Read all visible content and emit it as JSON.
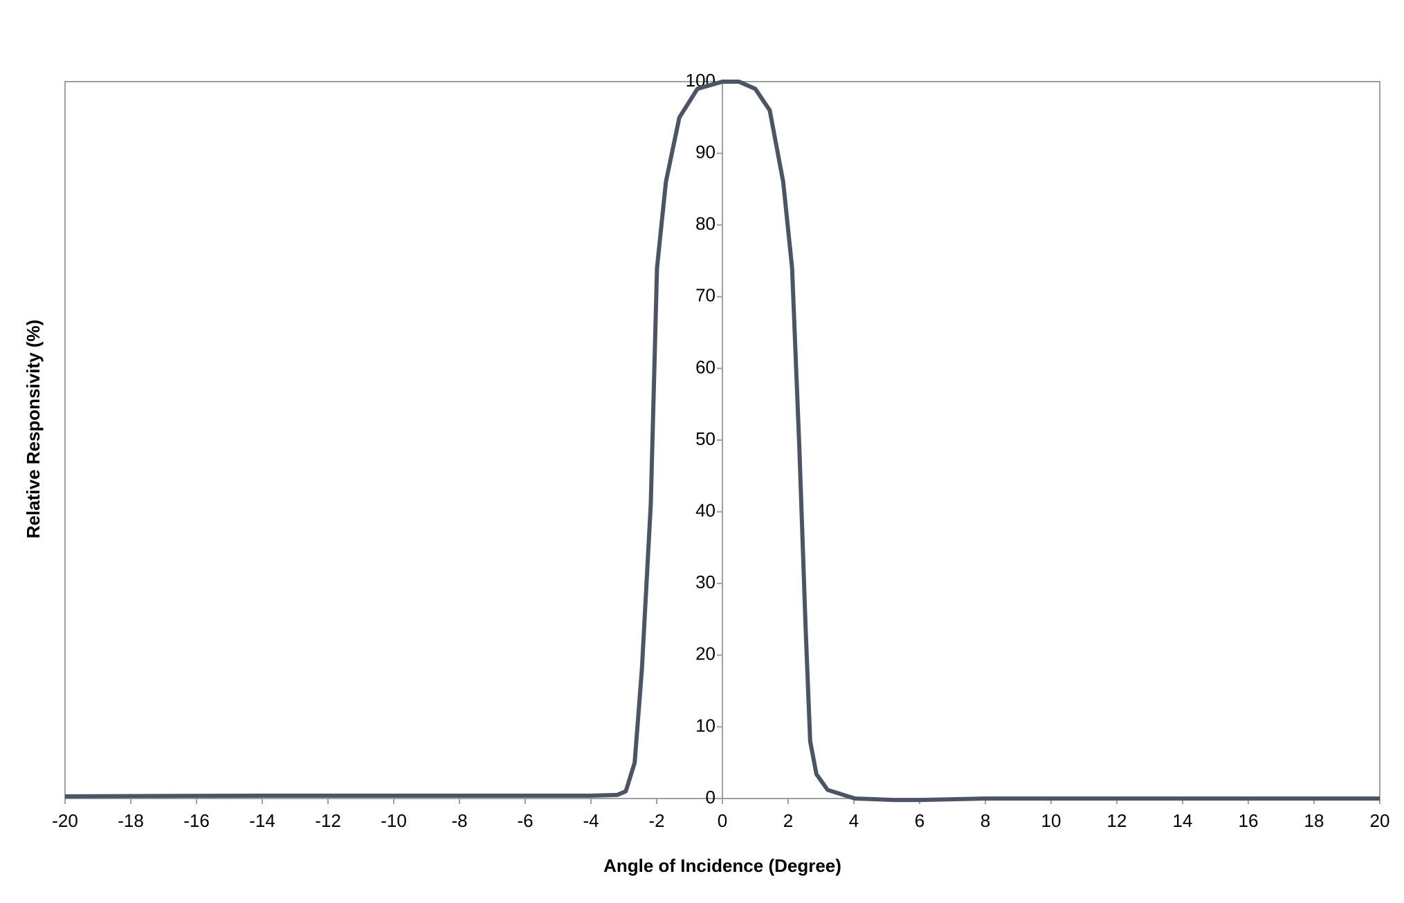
{
  "chart_data": {
    "type": "line",
    "xlabel": "Angle of Incidence (Degree)",
    "ylabel": "Relative Responsivity (%)",
    "x": [
      -20,
      -14,
      -4,
      -3.2,
      -2.94,
      -2.67,
      -2.45,
      -2.18,
      -1.99,
      -1.72,
      -1.31,
      -0.76,
      0,
      0.5,
      1,
      1.44,
      1.85,
      2.12,
      2.34,
      2.53,
      2.67,
      2.86,
      3.2,
      4.03,
      5.25,
      6,
      8,
      20
    ],
    "series": [
      {
        "name": "Relative Responsivity",
        "color": "#4b5566",
        "values": [
          0.3,
          0.4,
          0.4,
          0.5,
          1,
          5,
          18,
          41,
          74,
          86,
          95,
          99,
          100,
          100,
          99,
          96,
          86,
          74,
          49,
          24,
          8,
          3.4,
          1.2,
          0,
          -0.2,
          -0.2,
          0,
          0
        ]
      }
    ],
    "xlim": [
      -20,
      20
    ],
    "xticks": [
      -20,
      -18,
      -16,
      -14,
      -12,
      -10,
      -8,
      -6,
      -4,
      -2,
      0,
      2,
      4,
      6,
      8,
      10,
      12,
      14,
      16,
      18,
      20
    ],
    "ylim": [
      0,
      100
    ],
    "yticks": [
      0,
      10,
      20,
      30,
      40,
      50,
      60,
      70,
      80,
      90,
      100
    ]
  }
}
